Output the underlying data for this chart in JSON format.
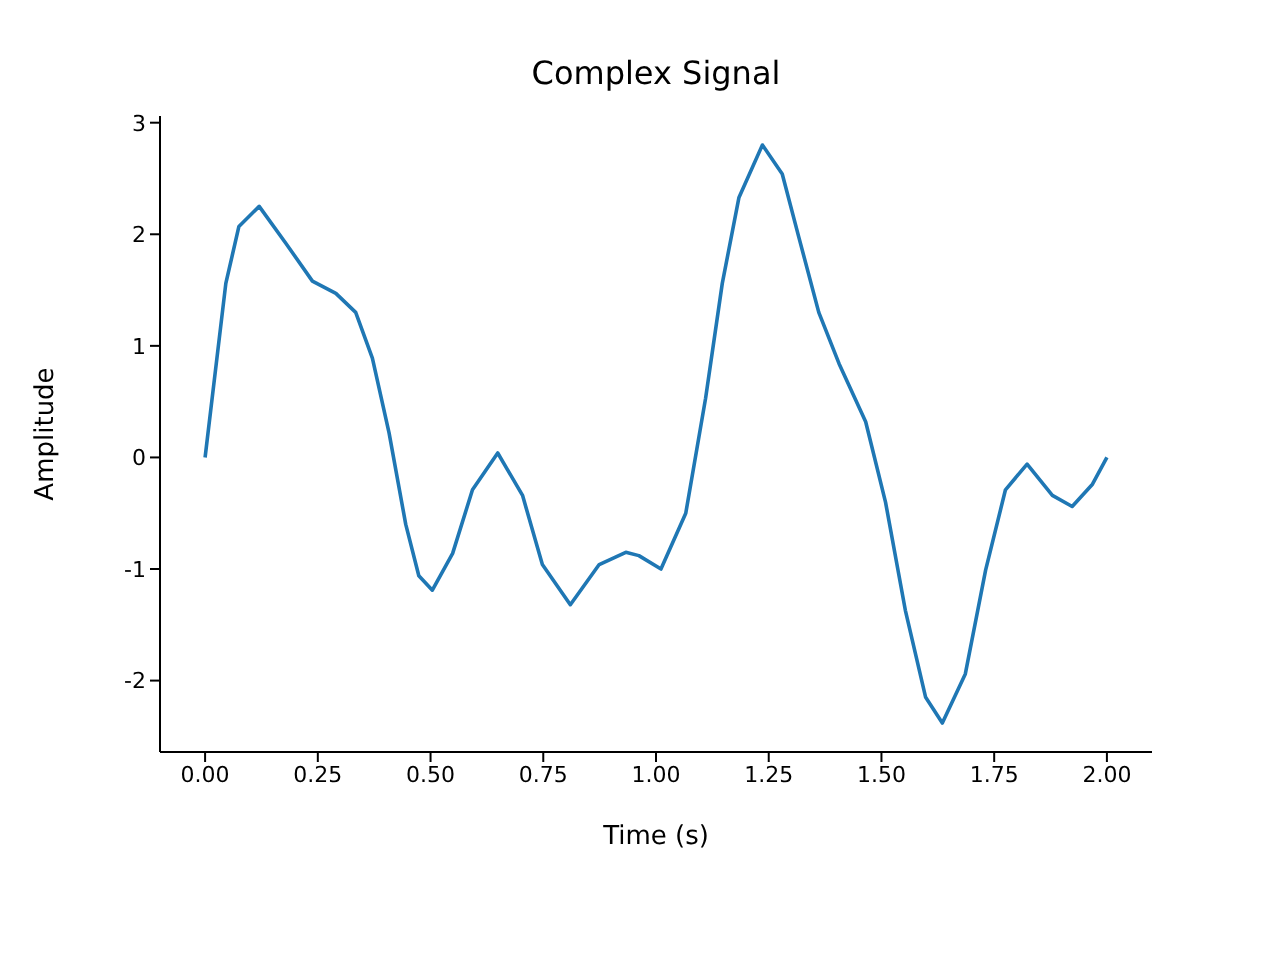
{
  "chart_data": {
    "type": "line",
    "title": "Complex Signal",
    "xlabel": "Time (s)",
    "ylabel": "Amplitude",
    "xlim": [
      -0.1,
      2.1
    ],
    "xticks": [
      {
        "value": 0,
        "label": "0.00"
      },
      {
        "value": 0.25,
        "label": "0.25"
      },
      {
        "value": 0.5,
        "label": "0.50"
      },
      {
        "value": 0.75,
        "label": "0.75"
      },
      {
        "value": 1,
        "label": "1.00"
      },
      {
        "value": 1.25,
        "label": "1.25"
      },
      {
        "value": 1.5,
        "label": "1.50"
      },
      {
        "value": 1.75,
        "label": "1.75"
      },
      {
        "value": 2,
        "label": "2.00"
      }
    ],
    "ylim": [
      -2.64,
      3.06
    ],
    "yticks": [
      -2,
      -1,
      0,
      1,
      2,
      3
    ],
    "grid": false,
    "legend": false,
    "marker": "none",
    "line_style": "solid",
    "series": [
      {
        "color": "#1f77b4",
        "x": [
          0,
          0.046,
          0.075,
          0.12,
          0.179,
          0.238,
          0.29,
          0.334,
          0.371,
          0.408,
          0.445,
          0.474,
          0.504,
          0.549,
          0.593,
          0.649,
          0.704,
          0.748,
          0.81,
          0.874,
          0.933,
          0.962,
          1.011,
          1.066,
          1.11,
          1.147,
          1.184,
          1.236,
          1.28,
          1.317,
          1.361,
          1.406,
          1.465,
          1.509,
          1.553,
          1.598,
          1.635,
          1.686,
          1.731,
          1.775,
          1.823,
          1.879,
          1.923,
          1.968,
          2.0
        ],
        "values": [
          0,
          1.56,
          2.07,
          2.25,
          1.92,
          1.58,
          1.47,
          1.3,
          0.89,
          0.22,
          -0.6,
          -1.06,
          -1.19,
          -0.86,
          -0.29,
          0.04,
          -0.34,
          -0.96,
          -1.32,
          -0.96,
          -0.85,
          -0.88,
          -1.0,
          -0.5,
          0.53,
          1.56,
          2.33,
          2.8,
          2.54,
          1.97,
          1.3,
          0.84,
          0.32,
          -0.4,
          -1.37,
          -2.15,
          -2.38,
          -1.94,
          -1.01,
          -0.29,
          -0.06,
          -0.34,
          -0.44,
          -0.24,
          0
        ]
      }
    ]
  }
}
